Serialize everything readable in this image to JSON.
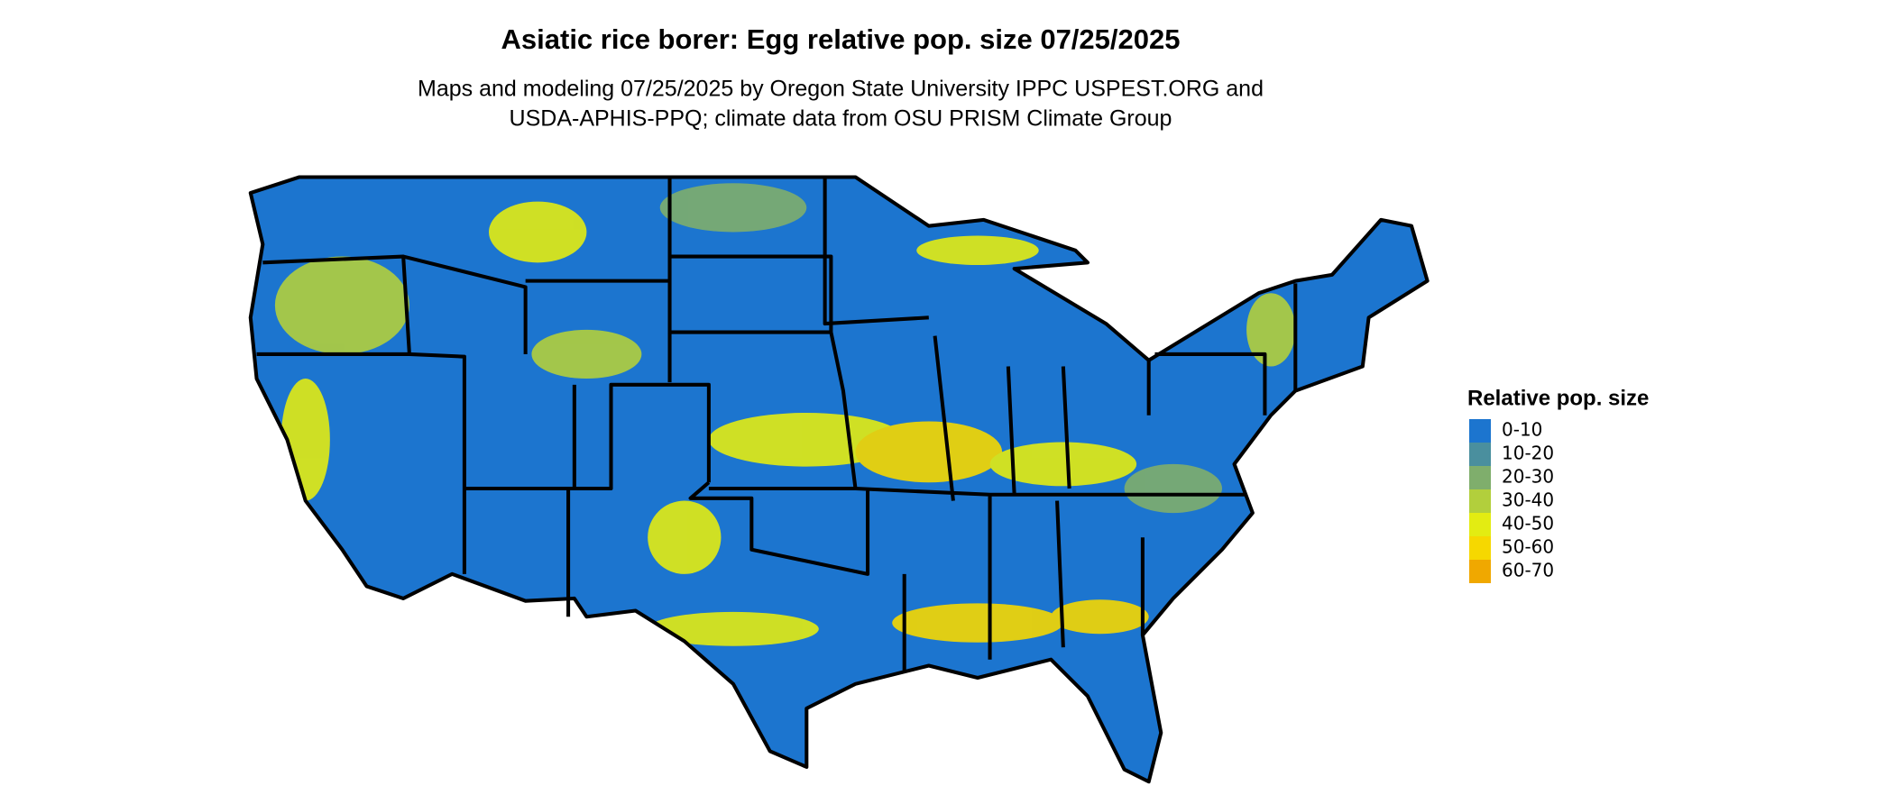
{
  "title": "Asiatic rice borer: Egg relative pop. size 07/25/2025",
  "subtitle": [
    "Maps and modeling 07/25/2025 by Oregon State University IPPC USPEST.ORG and",
    "USDA-APHIS-PPQ; climate data from OSU PRISM Climate Group"
  ],
  "legend": {
    "title": "Relative pop. size",
    "items": [
      {
        "label": "0-10",
        "color": "#1c75cf"
      },
      {
        "label": "10-20",
        "color": "#4a8f9e"
      },
      {
        "label": "20-30",
        "color": "#7fae6c"
      },
      {
        "label": "30-40",
        "color": "#b2cf3c"
      },
      {
        "label": "40-50",
        "color": "#e3ec12"
      },
      {
        "label": "50-60",
        "color": "#f6d800"
      },
      {
        "label": "60-70",
        "color": "#f0a800"
      }
    ]
  }
}
